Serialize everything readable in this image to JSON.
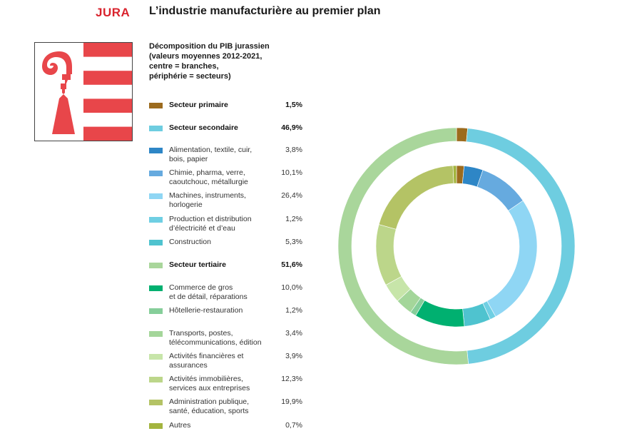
{
  "header": {
    "canton": "JURA",
    "title": "L’industrie manufacturière au premier plan"
  },
  "colors": {
    "canton_red": "#d9232d",
    "flag_red": "#e8464a"
  },
  "chart_data": {
    "type": "pie",
    "subtype": "nested-donut",
    "title": "Décomposition du PIB jurassien\n(valeurs moyennes 2012-2021,\ncentre = branches,\npériphérie = secteurs)",
    "unit": "%",
    "outer_ring": [
      {
        "label": "Secteur primaire",
        "value": 1.5,
        "display": "1,5%",
        "color": "#9c6b1e"
      },
      {
        "label": "Secteur secondaire",
        "value": 46.9,
        "display": "46,9%",
        "color": "#6ecde0"
      },
      {
        "label": "Secteur tertiaire",
        "value": 51.6,
        "display": "51,6%",
        "color": "#a9d69b"
      }
    ],
    "inner_ring": [
      {
        "label": "Secteur primaire",
        "value": 1.5,
        "color": "#9c6b1e"
      },
      {
        "label": "Alimentation, textile, cuir,\nbois, papier",
        "value": 3.8,
        "display": "3,8%",
        "color": "#2e86c6"
      },
      {
        "label": "Chimie, pharma, verre,\ncaoutchouc, métallurgie",
        "value": 10.1,
        "display": "10,1%",
        "color": "#66aadf"
      },
      {
        "label": "Machines, instruments,\nhorlogerie",
        "value": 26.4,
        "display": "26,4%",
        "color": "#8fd6f4"
      },
      {
        "label": "Production et distribution\nd’électricité et d’eau",
        "value": 1.2,
        "display": "1,2%",
        "color": "#6fcfe3"
      },
      {
        "label": "Construction",
        "value": 5.3,
        "display": "5,3%",
        "color": "#4fc3cf"
      },
      {
        "label": "Commerce de gros\net de détail, réparations",
        "value": 10.0,
        "display": "10,0%",
        "color": "#00b070"
      },
      {
        "label": "Hôtellerie-restauration",
        "value": 1.2,
        "display": "1,2%",
        "color": "#86ce9a"
      },
      {
        "label": "Transports, postes,\ntélécommunications, édition",
        "value": 3.4,
        "display": "3,4%",
        "color": "#a4d69a"
      },
      {
        "label": "Activités financières et\nassurances",
        "value": 3.9,
        "display": "3,9%",
        "color": "#c7e5a9"
      },
      {
        "label": "Activités immobilières,\nservices aux entreprises",
        "value": 12.3,
        "display": "12,3%",
        "color": "#bcd68a"
      },
      {
        "label": "Administration publique,\nsanté, éducation, sports",
        "value": 19.9,
        "display": "19,9%",
        "color": "#b4c365"
      },
      {
        "label": "Autres",
        "value": 0.7,
        "display": "0,7%",
        "color": "#a3b43e"
      }
    ],
    "legend": [
      {
        "label": "Secteur primaire",
        "display": "1,5%",
        "color": "#9c6b1e",
        "bold": true
      },
      {
        "label": "Secteur secondaire",
        "display": "46,9%",
        "color": "#6ecde0",
        "bold": true
      },
      {
        "label": "Alimentation, textile, cuir,\nbois, papier",
        "display": "3,8%",
        "color": "#2e86c6",
        "bold": false
      },
      {
        "label": "Chimie, pharma, verre,\ncaoutchouc, métallurgie",
        "display": "10,1%",
        "color": "#66aadf",
        "bold": false
      },
      {
        "label": "Machines, instruments,\nhorlogerie",
        "display": "26,4%",
        "color": "#8fd6f4",
        "bold": false
      },
      {
        "label": "Production et distribution\nd’électricité et d’eau",
        "display": "1,2%",
        "color": "#6fcfe3",
        "bold": false
      },
      {
        "label": "Construction",
        "display": "5,3%",
        "color": "#4fc3cf",
        "bold": false
      },
      {
        "label": "Secteur tertiaire",
        "display": "51,6%",
        "color": "#a9d69b",
        "bold": true
      },
      {
        "label": "Commerce de gros\net de détail, réparations",
        "display": "10,0%",
        "color": "#00b070",
        "bold": false
      },
      {
        "label": "Hôtellerie-restauration",
        "display": "1,2%",
        "color": "#86ce9a",
        "bold": false
      },
      {
        "label": "Transports, postes,\ntélécommunications, édition",
        "display": "3,4%",
        "color": "#a4d69a",
        "bold": false
      },
      {
        "label": "Activités financières et\nassurances",
        "display": "3,9%",
        "color": "#c7e5a9",
        "bold": false
      },
      {
        "label": "Activités immobilières,\nservices aux entreprises",
        "display": "12,3%",
        "color": "#bcd68a",
        "bold": false
      },
      {
        "label": "Administration publique,\nsanté, éducation, sports",
        "display": "19,9%",
        "color": "#b4c365",
        "bold": false
      },
      {
        "label": "Autres",
        "display": "0,7%",
        "color": "#a3b43e",
        "bold": false
      }
    ]
  }
}
